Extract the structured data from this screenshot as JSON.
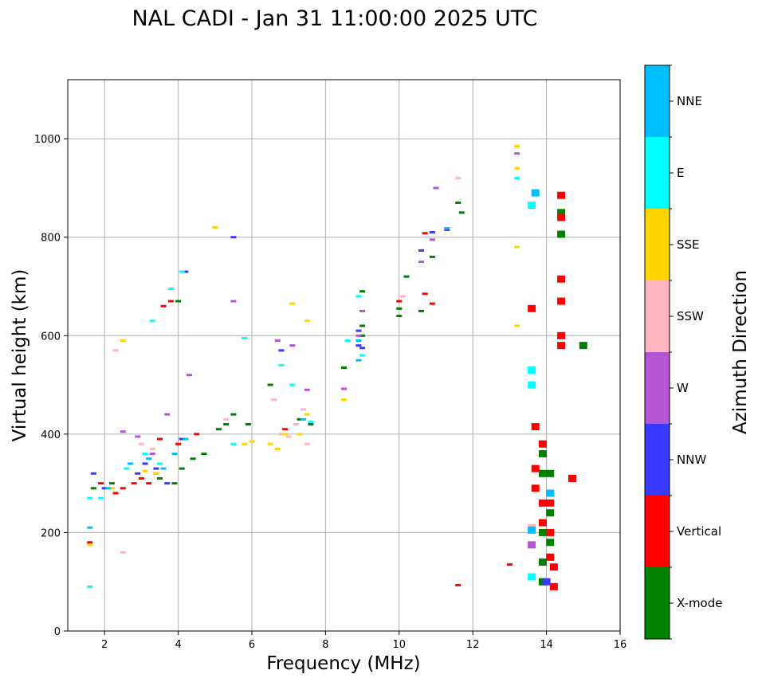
{
  "chart_data": {
    "type": "scatter",
    "title": "NAL CADI - Jan 31 11:00:00 2025 UTC",
    "xlabel": "Frequency (MHz)",
    "ylabel": "Virtual height (km)",
    "xlim": [
      1,
      16
    ],
    "ylim": [
      0,
      1120
    ],
    "xticks": [
      2,
      4,
      6,
      8,
      10,
      12,
      14,
      16
    ],
    "yticks": [
      0,
      200,
      400,
      600,
      800,
      1000
    ],
    "grid": true,
    "colorbar": {
      "label": "Azimuth Direction",
      "categories": [
        "X-mode",
        "Vertical",
        "NNW",
        "W",
        "SSW",
        "SSE",
        "E",
        "NNE"
      ],
      "colors": [
        "#008000",
        "#ff0000",
        "#3a3aff",
        "#b455d6",
        "#ffb6c1",
        "#ffd700",
        "#00ffff",
        "#00bfff"
      ]
    },
    "series": [
      {
        "name": "X-mode",
        "points": [
          [
            1.7,
            290
          ],
          [
            2.2,
            300
          ],
          [
            3.5,
            310
          ],
          [
            3.9,
            300
          ],
          [
            4.0,
            670
          ],
          [
            4.1,
            330
          ],
          [
            4.4,
            350
          ],
          [
            4.7,
            360
          ],
          [
            5.1,
            410
          ],
          [
            5.3,
            420
          ],
          [
            5.5,
            440
          ],
          [
            5.9,
            420
          ],
          [
            6.5,
            500
          ],
          [
            7.3,
            430
          ],
          [
            7.6,
            420
          ],
          [
            8.5,
            535
          ],
          [
            9.0,
            600
          ],
          [
            9.0,
            620
          ],
          [
            9.0,
            690
          ],
          [
            10.0,
            640
          ],
          [
            10.0,
            655
          ],
          [
            10.2,
            720
          ],
          [
            10.6,
            650
          ],
          [
            10.9,
            760
          ],
          [
            11.7,
            850
          ],
          [
            11.6,
            870
          ],
          [
            13.9,
            100
          ],
          [
            13.9,
            140
          ],
          [
            13.9,
            200
          ],
          [
            13.9,
            320
          ],
          [
            13.9,
            360
          ],
          [
            14.1,
            180
          ],
          [
            14.1,
            240
          ],
          [
            14.1,
            280
          ],
          [
            14.1,
            320
          ],
          [
            14.4,
            806
          ],
          [
            14.4,
            850
          ],
          [
            15.0,
            580
          ]
        ]
      },
      {
        "name": "Vertical",
        "points": [
          [
            1.6,
            180
          ],
          [
            1.9,
            300
          ],
          [
            2.3,
            280
          ],
          [
            2.5,
            290
          ],
          [
            2.8,
            300
          ],
          [
            3.0,
            310
          ],
          [
            3.2,
            300
          ],
          [
            3.4,
            320
          ],
          [
            3.5,
            390
          ],
          [
            3.6,
            660
          ],
          [
            3.8,
            670
          ],
          [
            4.0,
            380
          ],
          [
            4.2,
            390
          ],
          [
            4.5,
            400
          ],
          [
            6.9,
            410
          ],
          [
            10.0,
            670
          ],
          [
            10.7,
            685
          ],
          [
            10.9,
            665
          ],
          [
            10.7,
            808
          ],
          [
            11.6,
            93
          ],
          [
            13.0,
            135
          ],
          [
            13.6,
            655
          ],
          [
            13.7,
            415
          ],
          [
            13.7,
            330
          ],
          [
            13.7,
            290
          ],
          [
            13.9,
            380
          ],
          [
            13.9,
            260
          ],
          [
            13.9,
            220
          ],
          [
            14.1,
            150
          ],
          [
            14.1,
            200
          ],
          [
            14.1,
            260
          ],
          [
            14.2,
            90
          ],
          [
            14.2,
            130
          ],
          [
            14.4,
            580
          ],
          [
            14.4,
            600
          ],
          [
            14.4,
            670
          ],
          [
            14.4,
            715
          ],
          [
            14.4,
            840
          ],
          [
            14.4,
            885
          ],
          [
            14.7,
            310
          ]
        ]
      },
      {
        "name": "NNW",
        "points": [
          [
            1.7,
            320
          ],
          [
            2.0,
            290
          ],
          [
            2.9,
            320
          ],
          [
            3.1,
            340
          ],
          [
            3.4,
            330
          ],
          [
            3.7,
            300
          ],
          [
            4.1,
            390
          ],
          [
            4.2,
            730
          ],
          [
            5.5,
            800
          ],
          [
            6.8,
            570
          ],
          [
            8.9,
            580
          ],
          [
            8.9,
            610
          ],
          [
            9.0,
            575
          ],
          [
            10.6,
            773
          ],
          [
            10.9,
            810
          ],
          [
            11.3,
            815
          ],
          [
            14.0,
            100
          ]
        ]
      },
      {
        "name": "W",
        "points": [
          [
            2.5,
            405
          ],
          [
            2.9,
            395
          ],
          [
            3.3,
            360
          ],
          [
            3.7,
            440
          ],
          [
            4.3,
            520
          ],
          [
            5.5,
            670
          ],
          [
            6.7,
            590
          ],
          [
            7.1,
            580
          ],
          [
            7.5,
            490
          ],
          [
            8.5,
            492
          ],
          [
            8.9,
            600
          ],
          [
            9.0,
            650
          ],
          [
            10.6,
            750
          ],
          [
            10.9,
            795
          ],
          [
            11.0,
            900
          ],
          [
            13.2,
            970
          ],
          [
            13.6,
            175
          ]
        ]
      },
      {
        "name": "SSW",
        "points": [
          [
            2.3,
            570
          ],
          [
            2.5,
            160
          ],
          [
            3.0,
            380
          ],
          [
            3.3,
            370
          ],
          [
            5.3,
            430
          ],
          [
            6.6,
            470
          ],
          [
            6.8,
            400
          ],
          [
            7.0,
            395
          ],
          [
            7.2,
            420
          ],
          [
            7.5,
            380
          ],
          [
            7.4,
            450
          ],
          [
            10.1,
            680
          ],
          [
            11.6,
            920
          ],
          [
            13.6,
            210
          ]
        ]
      },
      {
        "name": "SSE",
        "points": [
          [
            1.6,
            175
          ],
          [
            2.2,
            290
          ],
          [
            2.5,
            590
          ],
          [
            3.1,
            325
          ],
          [
            3.4,
            320
          ],
          [
            5.0,
            820
          ],
          [
            5.8,
            380
          ],
          [
            6.0,
            385
          ],
          [
            6.5,
            380
          ],
          [
            6.7,
            370
          ],
          [
            6.9,
            400
          ],
          [
            7.1,
            665
          ],
          [
            7.3,
            400
          ],
          [
            7.5,
            630
          ],
          [
            7.5,
            440
          ],
          [
            8.5,
            470
          ],
          [
            13.2,
            780
          ],
          [
            13.2,
            620
          ],
          [
            13.2,
            940
          ],
          [
            13.2,
            985
          ]
        ]
      },
      {
        "name": "E",
        "points": [
          [
            1.6,
            90
          ],
          [
            1.6,
            270
          ],
          [
            1.9,
            270
          ],
          [
            2.6,
            330
          ],
          [
            3.1,
            360
          ],
          [
            3.3,
            630
          ],
          [
            3.5,
            340
          ],
          [
            3.8,
            695
          ],
          [
            4.1,
            730
          ],
          [
            5.5,
            380
          ],
          [
            5.8,
            595
          ],
          [
            6.8,
            540
          ],
          [
            7.1,
            500
          ],
          [
            7.6,
            425
          ],
          [
            8.6,
            590
          ],
          [
            8.9,
            680
          ],
          [
            9.0,
            560
          ],
          [
            13.2,
            920
          ],
          [
            13.6,
            110
          ],
          [
            13.6,
            500
          ],
          [
            13.6,
            530
          ],
          [
            13.6,
            865
          ]
        ]
      },
      {
        "name": "NNE",
        "points": [
          [
            1.6,
            210
          ],
          [
            2.1,
            290
          ],
          [
            2.7,
            340
          ],
          [
            3.2,
            350
          ],
          [
            3.6,
            330
          ],
          [
            3.9,
            360
          ],
          [
            4.2,
            390
          ],
          [
            7.4,
            430
          ],
          [
            8.9,
            550
          ],
          [
            8.9,
            590
          ],
          [
            11.3,
            818
          ],
          [
            13.6,
            205
          ],
          [
            13.7,
            890
          ],
          [
            14.1,
            280
          ]
        ]
      }
    ]
  }
}
